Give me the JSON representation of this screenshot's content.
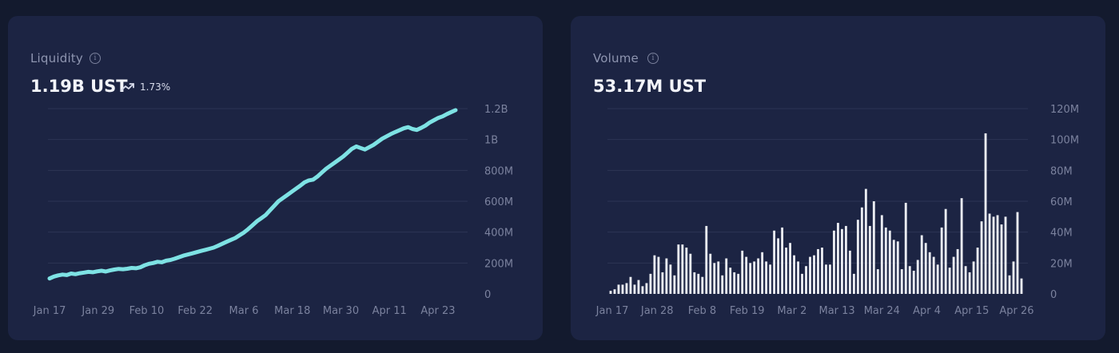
{
  "cards": {
    "liquidity": {
      "title": "Liquidity",
      "value": "1.19B UST",
      "change": "1.73%"
    },
    "volume": {
      "title": "Volume",
      "value": "53.17M UST"
    }
  },
  "colors": {
    "page_bg": "#131a2e",
    "card_bg": "#1c2443",
    "liquidity_line": "#7ee2e4",
    "volume_bar": "#e8eaf0",
    "gridline": "#2c3554",
    "tick_text": "#7b829e"
  },
  "icons": {
    "info": "info-circle-icon",
    "trend": "trending-up-icon"
  },
  "chart_data": [
    {
      "type": "line",
      "series": [
        {
          "values": [
            100,
            112,
            120,
            125,
            122,
            132,
            128,
            134,
            138,
            143,
            140,
            146,
            150,
            145,
            152,
            158,
            162,
            160,
            163,
            168,
            166,
            172,
            185,
            195,
            200,
            208,
            205,
            215,
            220,
            228,
            238,
            248,
            255,
            262,
            270,
            278,
            285,
            292,
            300,
            312,
            325,
            338,
            350,
            362,
            380,
            398,
            420,
            445,
            470,
            490,
            510,
            540,
            570,
            600,
            620,
            640,
            660,
            680,
            700,
            722,
            735,
            740,
            760,
            785,
            810,
            830,
            850,
            870,
            890,
            915,
            940,
            955,
            945,
            935,
            950,
            965,
            985,
            1005,
            1020,
            1035,
            1048,
            1060,
            1072,
            1080,
            1068,
            1062,
            1075,
            1090,
            1110,
            1125,
            1140,
            1150,
            1165,
            1178,
            1190
          ]
        }
      ],
      "x_start": "2022-01-17",
      "x_end": "2022-04-25",
      "x_ticks": [
        "Jan 17",
        "Jan 29",
        "Feb 10",
        "Feb 22",
        "Mar 6",
        "Mar 18",
        "Mar 30",
        "Apr 11",
        "Apr 23"
      ],
      "y_ticks": [
        "0",
        "200M",
        "400M",
        "600M",
        "800M",
        "1B",
        "1.2B"
      ],
      "ylim": [
        0,
        1200000000
      ],
      "unit_multiplier": 1000000,
      "grid": true
    },
    {
      "type": "bar",
      "series": [
        {
          "values": [
            2,
            3,
            6,
            6,
            7,
            11,
            6,
            9,
            5,
            7,
            13,
            25,
            24,
            14,
            23,
            19,
            12,
            32,
            32,
            30,
            26,
            14,
            13,
            11,
            44,
            26,
            20,
            21,
            12,
            23,
            17,
            14,
            13,
            28,
            24,
            20,
            21,
            23,
            27,
            21,
            19,
            41,
            36,
            43,
            30,
            33,
            25,
            21,
            13,
            18,
            24,
            25,
            29,
            30,
            19,
            19,
            41,
            46,
            42,
            44,
            28,
            13,
            48,
            56,
            68,
            44,
            60,
            16,
            51,
            43,
            41,
            35,
            34,
            16,
            59,
            18,
            15,
            22,
            38,
            33,
            27,
            24,
            19,
            43,
            55,
            17,
            24,
            29,
            62,
            18,
            14,
            21,
            30,
            47,
            104,
            52,
            50,
            51,
            45,
            50,
            12,
            21,
            53,
            10
          ]
        }
      ],
      "x_start": "2022-01-14",
      "x_end": "2022-04-26",
      "x_ticks": [
        "Jan 17",
        "Jan 28",
        "Feb 8",
        "Feb 19",
        "Mar 2",
        "Mar 13",
        "Mar 24",
        "Apr 4",
        "Apr 15",
        "Apr 26"
      ],
      "y_ticks": [
        "0",
        "20M",
        "40M",
        "60M",
        "80M",
        "100M",
        "120M"
      ],
      "ylim": [
        0,
        120000000
      ],
      "unit_multiplier": 1000000,
      "grid": true
    }
  ]
}
